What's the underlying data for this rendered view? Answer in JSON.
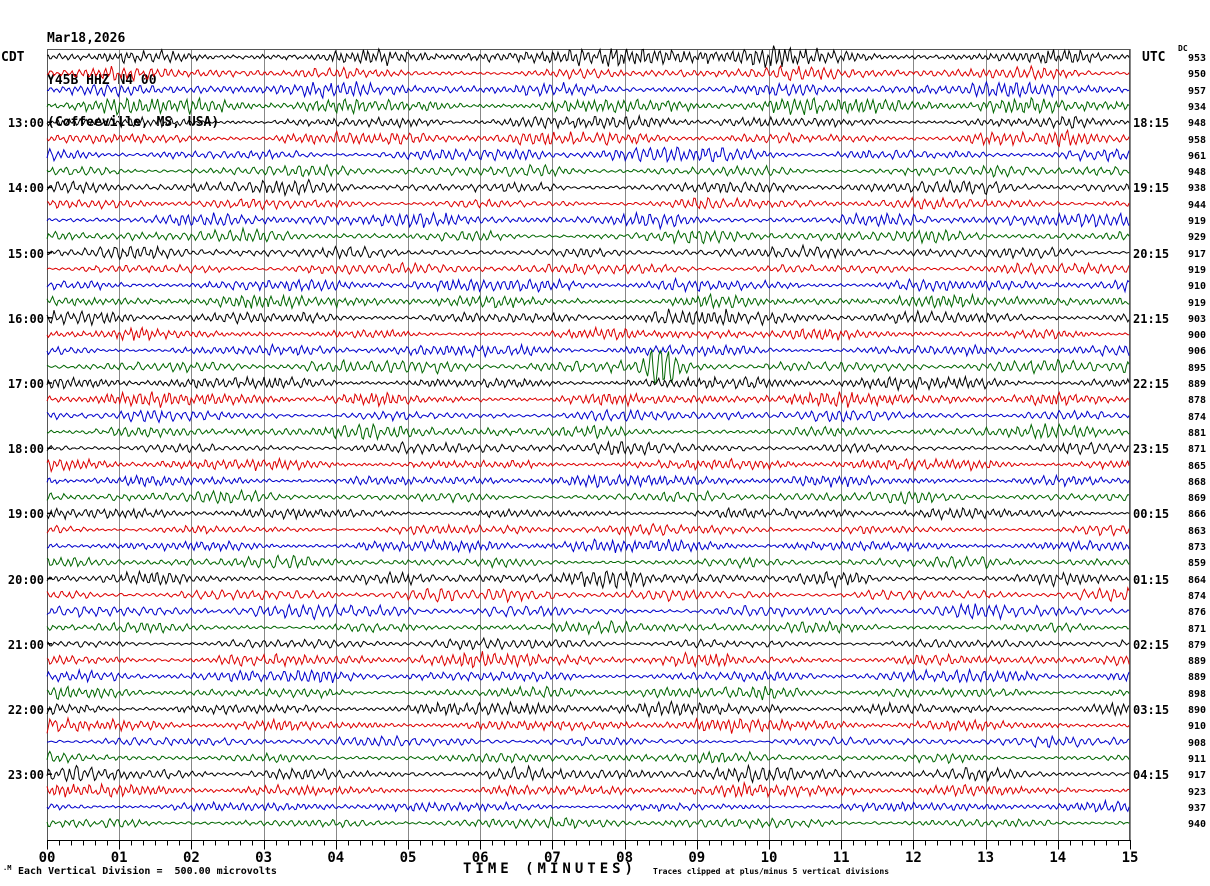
{
  "header": {
    "date": "Mar18,2026",
    "station": "Y45B HHZ N4 00",
    "location": "(Coffeeville, MS, USA)"
  },
  "left_axis": {
    "label": "CDT"
  },
  "right_axis": {
    "label": "UTC",
    "dc_label": "DC"
  },
  "x_axis": {
    "title": "TIME (MINUTES)",
    "tick_labels": [
      "00",
      "01",
      "02",
      "03",
      "04",
      "05",
      "06",
      "07",
      "08",
      "09",
      "10",
      "11",
      "12",
      "13",
      "14",
      "15"
    ],
    "minutes_per_line": 15,
    "minor_ticks_per_minute": 5
  },
  "footer": {
    "scale_note": "Each Vertical Division =  500.00 microvolts",
    "clip_note": "Traces clipped at plus/minus 5 vertical divisions",
    "watermark": ".M"
  },
  "palette": {
    "black": "#000000",
    "red": "#dd0000",
    "blue": "#0000cc",
    "green": "#006600",
    "gridline": "#878787",
    "frame": "#555555",
    "background": "#ffffff"
  },
  "chart_data": {
    "type": "line",
    "subtype": "helicorder-seismogram",
    "title": "Y45B HHZ N4 00 (Coffeeville, MS, USA) Mar18,2026",
    "xlabel": "TIME (MINUTES)",
    "x_range": [
      0,
      15
    ],
    "rows_count": 48,
    "trace_color_cycle": [
      "black",
      "red",
      "blue",
      "green"
    ],
    "rows": [
      {
        "dc": "953",
        "color": "black"
      },
      {
        "dc": "950",
        "color": "red"
      },
      {
        "dc": "957",
        "color": "blue"
      },
      {
        "dc": "934",
        "color": "green"
      },
      {
        "dc": "948",
        "color": "black",
        "cdt": "13:00",
        "utc": "18:15"
      },
      {
        "dc": "958",
        "color": "red"
      },
      {
        "dc": "961",
        "color": "blue"
      },
      {
        "dc": "948",
        "color": "green"
      },
      {
        "dc": "938",
        "color": "black",
        "cdt": "14:00",
        "utc": "19:15"
      },
      {
        "dc": "944",
        "color": "red"
      },
      {
        "dc": "919",
        "color": "blue"
      },
      {
        "dc": "929",
        "color": "green"
      },
      {
        "dc": "917",
        "color": "black",
        "cdt": "15:00",
        "utc": "20:15"
      },
      {
        "dc": "919",
        "color": "red"
      },
      {
        "dc": "910",
        "color": "blue"
      },
      {
        "dc": "919",
        "color": "green"
      },
      {
        "dc": "903",
        "color": "black",
        "cdt": "16:00",
        "utc": "21:15"
      },
      {
        "dc": "900",
        "color": "red"
      },
      {
        "dc": "906",
        "color": "blue"
      },
      {
        "dc": "895",
        "color": "green"
      },
      {
        "dc": "889",
        "color": "black",
        "cdt": "17:00",
        "utc": "22:15"
      },
      {
        "dc": "878",
        "color": "red"
      },
      {
        "dc": "874",
        "color": "blue"
      },
      {
        "dc": "881",
        "color": "green"
      },
      {
        "dc": "871",
        "color": "black",
        "cdt": "18:00",
        "utc": "23:15"
      },
      {
        "dc": "865",
        "color": "red"
      },
      {
        "dc": "868",
        "color": "blue"
      },
      {
        "dc": "869",
        "color": "green"
      },
      {
        "dc": "866",
        "color": "black",
        "cdt": "19:00",
        "utc": "00:15"
      },
      {
        "dc": "863",
        "color": "red"
      },
      {
        "dc": "873",
        "color": "blue"
      },
      {
        "dc": "859",
        "color": "green"
      },
      {
        "dc": "864",
        "color": "black",
        "cdt": "20:00",
        "utc": "01:15"
      },
      {
        "dc": "874",
        "color": "red"
      },
      {
        "dc": "876",
        "color": "blue"
      },
      {
        "dc": "871",
        "color": "green"
      },
      {
        "dc": "879",
        "color": "black",
        "cdt": "21:00",
        "utc": "02:15"
      },
      {
        "dc": "889",
        "color": "red"
      },
      {
        "dc": "889",
        "color": "blue"
      },
      {
        "dc": "898",
        "color": "green"
      },
      {
        "dc": "890",
        "color": "black",
        "cdt": "22:00",
        "utc": "03:15"
      },
      {
        "dc": "910",
        "color": "red"
      },
      {
        "dc": "908",
        "color": "blue"
      },
      {
        "dc": "911",
        "color": "green"
      },
      {
        "dc": "917",
        "color": "black",
        "cdt": "23:00",
        "utc": "04:15"
      },
      {
        "dc": "923",
        "color": "red"
      },
      {
        "dc": "937",
        "color": "blue"
      },
      {
        "dc": "940",
        "color": "green"
      }
    ],
    "events": [
      {
        "rows": [
          0,
          0
        ],
        "minute": 10.0,
        "width": 0.45,
        "gain": 2.6,
        "note": "large black spikes near minute 10 on first trace"
      },
      {
        "rows": [
          0,
          0
        ],
        "minute": 8.8,
        "width": 0.5,
        "gain": 1.8,
        "note": "elevated amplitude near minute 9 on first trace"
      },
      {
        "rows": [
          0,
          19
        ],
        "minute": 8.8,
        "width": 0.9,
        "gain": 1.3,
        "note": "broad elevated-amplitude band minutes 8-9.5 on upper traces"
      },
      {
        "rows": [
          19,
          19
        ],
        "minute": 8.53,
        "width": 0.22,
        "gain": 6.5,
        "note": "clipped green burst around minute 8.5 (~22:15 UTC event)"
      },
      {
        "rows": [
          19,
          19
        ],
        "minute": 9.0,
        "width": 0.5,
        "gain": 1.7,
        "note": "coda of green burst"
      },
      {
        "rows": [
          12,
          12
        ],
        "minute": 5.45,
        "width": 0.3,
        "gain": 2.0,
        "note": "dense black patch near minute 5.4"
      },
      {
        "rows": [
          4,
          7
        ],
        "minute": 14.2,
        "width": 0.4,
        "gain": 1.5,
        "note": "slightly elevated amplitude near minute 14.2"
      }
    ]
  }
}
